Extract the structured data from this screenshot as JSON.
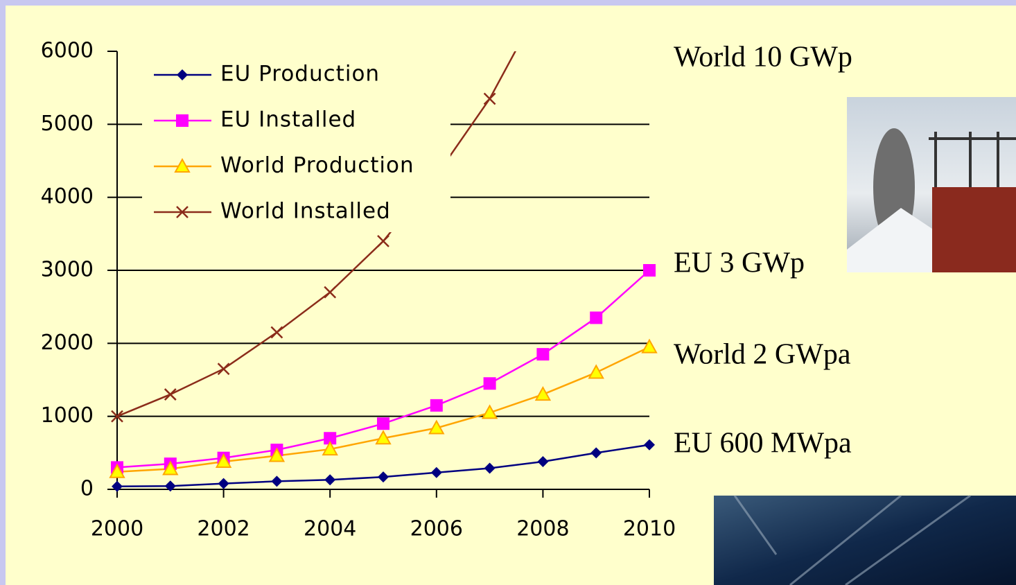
{
  "chart_data": {
    "type": "line",
    "x": [
      2000,
      2001,
      2002,
      2003,
      2004,
      2005,
      2006,
      2007,
      2008,
      2009,
      2010
    ],
    "series": [
      {
        "name": "EU Production",
        "color": "#000080",
        "marker": "diamond",
        "values": [
          40,
          45,
          80,
          110,
          130,
          170,
          230,
          290,
          380,
          500,
          610
        ]
      },
      {
        "name": "EU Installed",
        "color": "#ff00ff",
        "marker": "square",
        "values": [
          300,
          350,
          430,
          540,
          700,
          900,
          1150,
          1450,
          1850,
          2350,
          3000
        ]
      },
      {
        "name": "World Production",
        "color": "#ffa500",
        "marker": "triangle",
        "values": [
          240,
          280,
          380,
          460,
          550,
          700,
          840,
          1050,
          1300,
          1600,
          1950
        ]
      },
      {
        "name": "World Installed",
        "color": "#8b2c1a",
        "marker": "cross",
        "values": [
          1000,
          1300,
          1650,
          2150,
          2700,
          3400,
          4300,
          5350,
          6700,
          null,
          null
        ]
      }
    ],
    "xlim": [
      2000,
      2010
    ],
    "xticks": [
      2000,
      2002,
      2004,
      2006,
      2008,
      2010
    ],
    "ylim": [
      0,
      6000
    ],
    "yticks": [
      0,
      1000,
      2000,
      3000,
      4000,
      5000,
      6000
    ],
    "grid": true,
    "legend": "upper left",
    "annotations": [
      "World 10 GWp",
      "EU 3 GWp",
      "World 2 GWpa",
      "EU 600 MWpa"
    ]
  }
}
